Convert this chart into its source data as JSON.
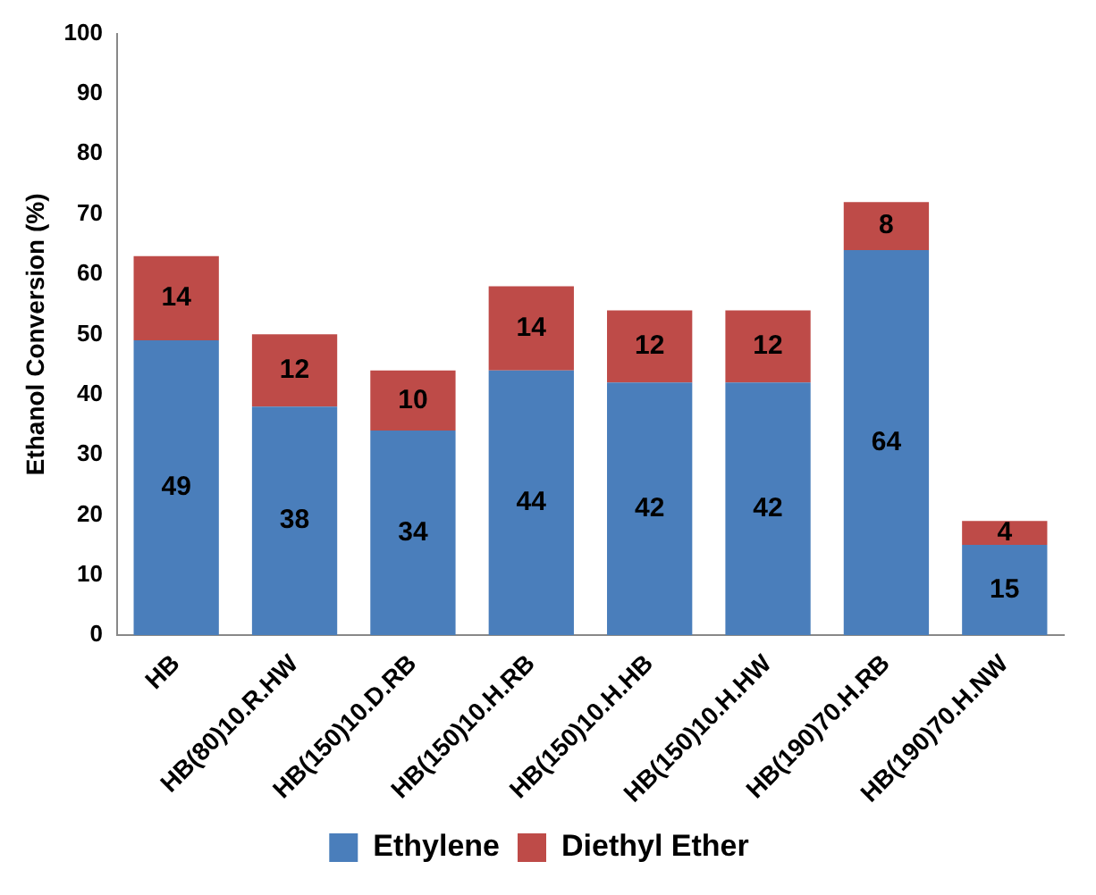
{
  "chart_data": {
    "type": "bar",
    "stacked": true,
    "ylabel": "Ethanol Conversion (%)",
    "categories": [
      "HB",
      "HB(80)10.R.HW",
      "HB(150)10.D.RB",
      "HB(150)10.H.RB",
      "HB(150)10.H.HB",
      "HB(150)10.H.HW",
      "HB(190)70.H.RB",
      "HB(190)70.H.NW"
    ],
    "series": [
      {
        "name": "Ethylene",
        "color": "#4a7ebb",
        "values": [
          49,
          38,
          34,
          44,
          42,
          42,
          64,
          15
        ]
      },
      {
        "name": "Diethyl Ether",
        "color": "#be4b48",
        "values": [
          14,
          12,
          10,
          14,
          12,
          12,
          8,
          4
        ]
      }
    ],
    "ylim": [
      0,
      100
    ],
    "yticks": [
      0,
      10,
      20,
      30,
      40,
      50,
      60,
      70,
      80,
      90,
      100
    ],
    "grid": false,
    "legend": "bottom",
    "data_labels": true
  }
}
